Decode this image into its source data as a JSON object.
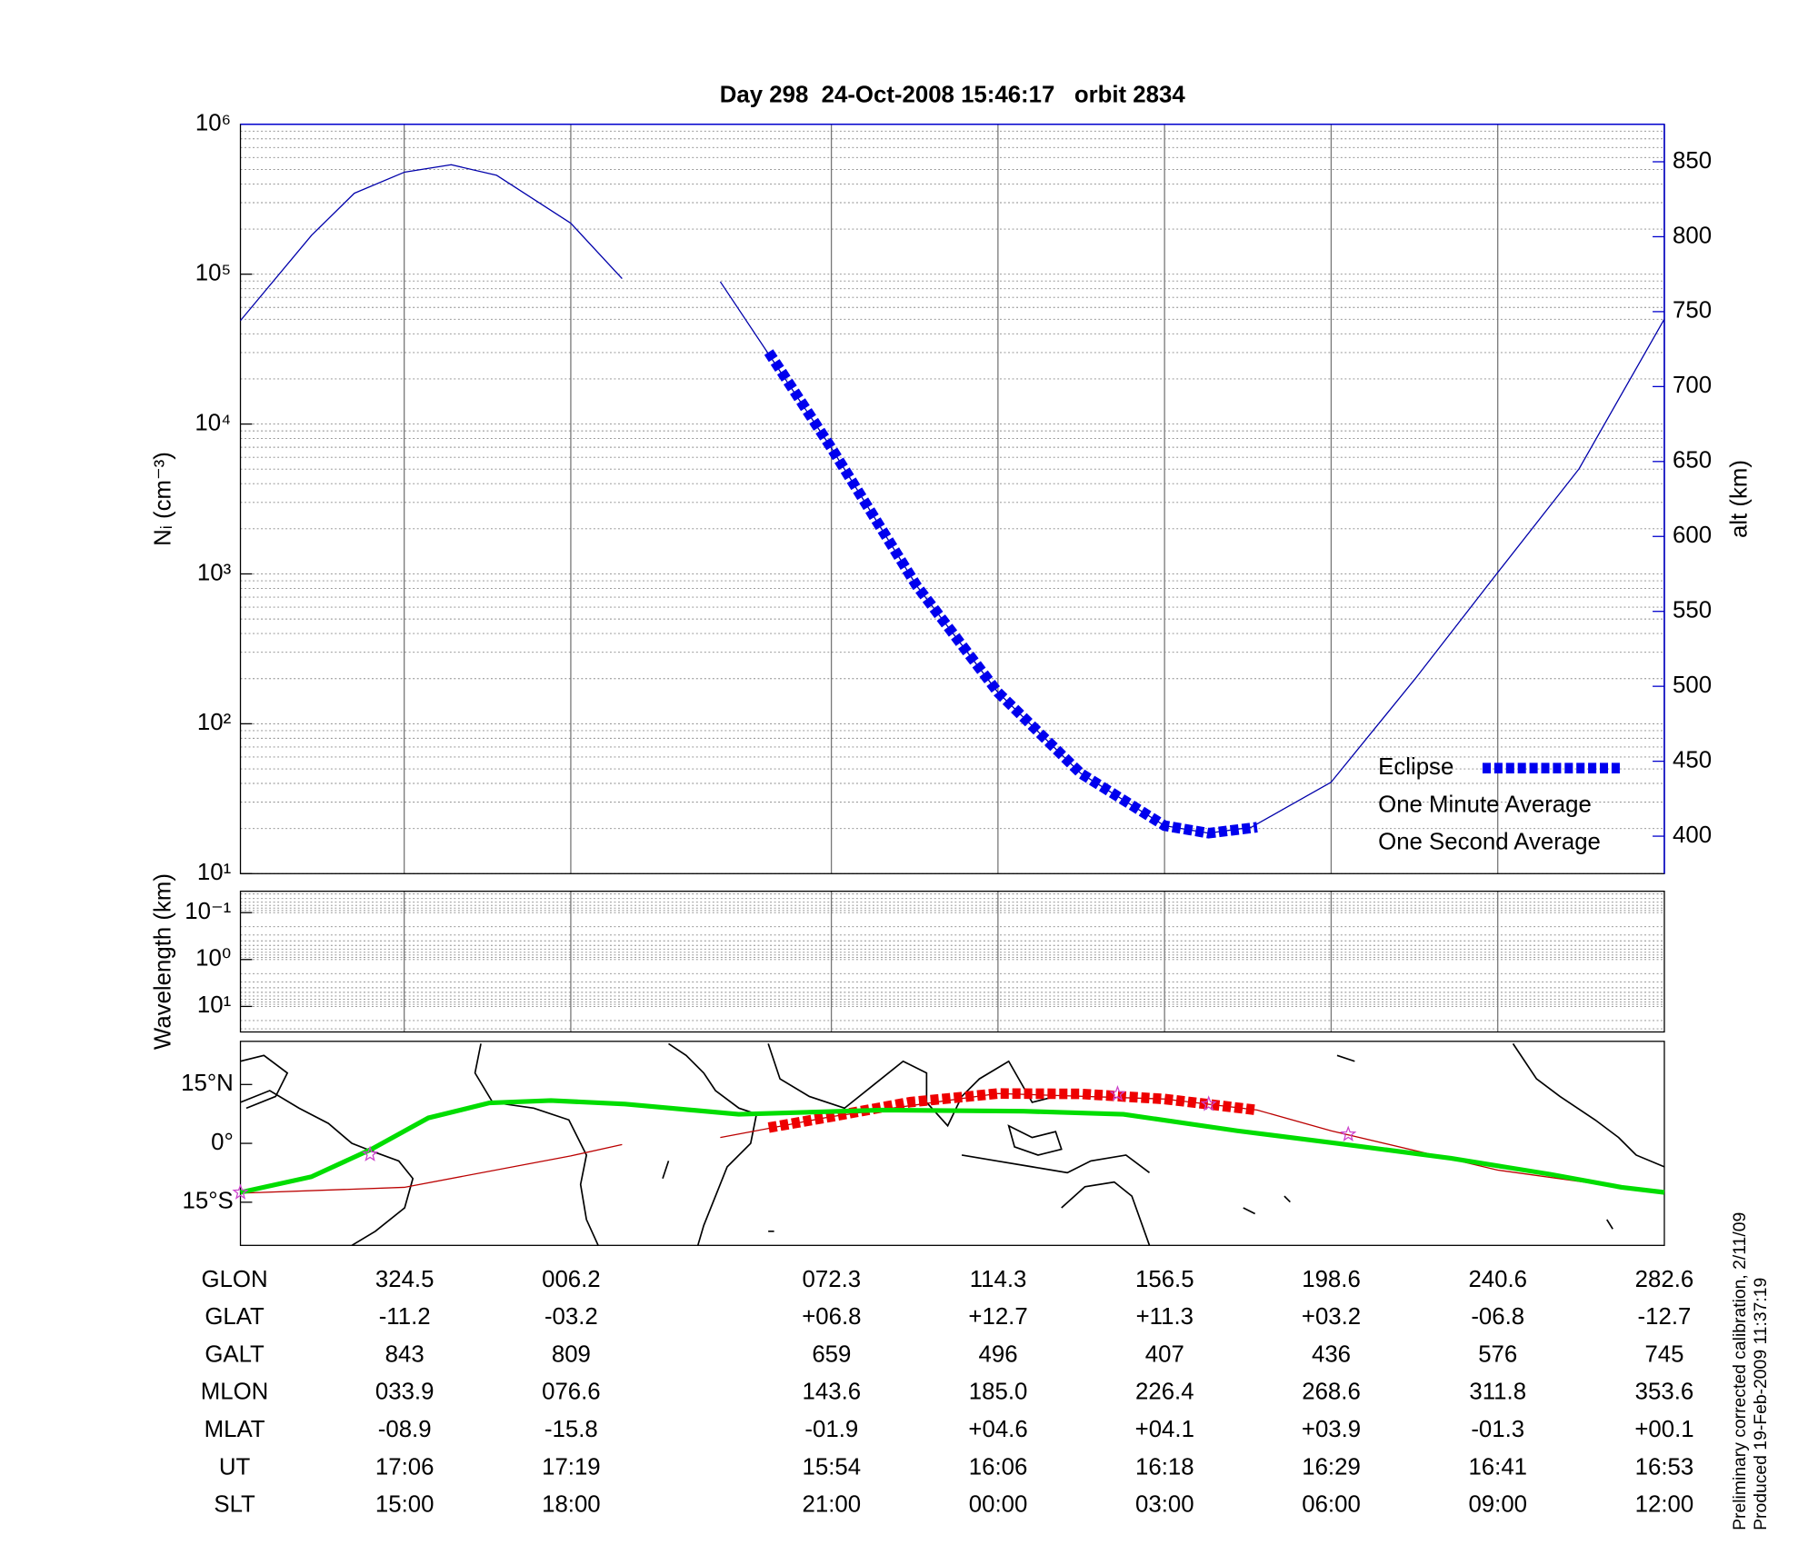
{
  "chart_data": [
    {
      "type": "line",
      "title": "Day 298  24-Oct-2008 15:46:17   orbit 2834",
      "ylabel": "Nᵢ (cm⁻³)",
      "y2label": "alt (km)",
      "ylog": true,
      "ylim": [
        10,
        1000000
      ],
      "yticks": [
        {
          "value": 10,
          "label": "10¹"
        },
        {
          "value": 100,
          "label": "10²"
        },
        {
          "value": 1000,
          "label": "10³"
        },
        {
          "value": 10000,
          "label": "10⁴"
        },
        {
          "value": 100000,
          "label": "10⁵"
        },
        {
          "value": 1000000,
          "label": "10⁶"
        }
      ],
      "y2lim": [
        375,
        875
      ],
      "y2ticks": [
        400,
        450,
        500,
        550,
        600,
        650,
        700,
        750,
        800,
        850
      ],
      "xlim": [
        0,
        100
      ],
      "xticks": [
        11.5,
        23.2,
        41.5,
        53.2,
        64.9,
        76.6,
        88.3
      ],
      "grid": true,
      "legend": "lower right",
      "series": [
        {
          "color": "#0000aa",
          "axis": "y2",
          "linewidth": 1,
          "x": [
            0,
            5,
            8,
            11.5,
            14.8,
            18,
            23.2,
            26.8,
            30,
            33.7,
            37,
            41.5,
            47.5,
            53.2,
            59,
            64.9,
            68,
            71,
            76.6,
            82.5,
            88.3,
            94,
            100
          ],
          "values": [
            744,
            801,
            829,
            843,
            848,
            841,
            809,
            772,
            null,
            770,
            723,
            659,
            567,
            496,
            442,
            407,
            402,
            406,
            436,
            505,
            576,
            645,
            745
          ]
        },
        {
          "name": "Eclipse",
          "color": "#0000ee",
          "axis": "y2",
          "linestyle": "squares",
          "x": [
            37.1,
            41.5,
            47.5,
            53.2,
            59,
            64.9,
            68,
            71.4
          ],
          "values": [
            723,
            659,
            567,
            496,
            442,
            407,
            402,
            406
          ]
        },
        {
          "name": "One Minute Average",
          "color": "#000000",
          "x": [],
          "values": []
        },
        {
          "name": "One Second Average",
          "color": "#00dd00",
          "x": [],
          "values": []
        }
      ]
    },
    {
      "type": "line",
      "ylabel": "Wavelength (km)",
      "ylog": true,
      "inverted": true,
      "ylim": [
        0.035,
        35
      ],
      "yticks": [
        {
          "value": 0.1,
          "label": "10⁻¹"
        },
        {
          "value": 1,
          "label": "10⁰"
        },
        {
          "value": 10,
          "label": "10¹"
        }
      ],
      "xlim": [
        0,
        100
      ],
      "xticks": [
        11.5,
        23.2,
        41.5,
        53.2,
        64.9,
        76.6,
        88.3
      ],
      "grid": true,
      "series": []
    },
    {
      "type": "map",
      "ylim": [
        -26,
        26
      ],
      "yticks": [
        {
          "value": 15,
          "label": "15°N"
        },
        {
          "value": 0,
          "label": "0°"
        },
        {
          "value": -15,
          "label": "15°S"
        }
      ],
      "xlim": [
        0,
        100
      ],
      "series": [
        {
          "color": "#bb0000",
          "linewidth": 1,
          "x": [
            0,
            11.5,
            23.2,
            26.8,
            30,
            33.7,
            41.5,
            53.2,
            64.9,
            71.4,
            76.6,
            88.3,
            100
          ],
          "values": [
            -12.7,
            -11.2,
            -3.2,
            -0.3,
            null,
            1.5,
            6.8,
            12.7,
            11.3,
            8.5,
            3.2,
            -6.8,
            -12.7
          ]
        },
        {
          "color": "#ee0000",
          "linestyle": "squares",
          "x": [
            37.1,
            41.5,
            47,
            53.2,
            59,
            64.9,
            71.4
          ],
          "values": [
            4,
            6.8,
            10.5,
            12.7,
            12.6,
            11.3,
            8.5
          ]
        },
        {
          "color": "#00dd00",
          "linewidth": 4,
          "x": [
            0,
            5,
            9.2,
            13.2,
            17.5,
            21.8,
            27,
            35,
            45,
            55,
            62,
            70,
            77,
            85,
            92,
            97,
            100
          ],
          "values": [
            -12.5,
            -8.5,
            -1.5,
            6.5,
            10.3,
            10.9,
            10,
            7.4,
            8.5,
            8.2,
            7.4,
            3.2,
            0,
            -3.8,
            -7.9,
            -11.2,
            -12.5
          ]
        }
      ],
      "markers": {
        "color": "#cc44cc",
        "x": [
          0,
          9.1,
          61.6,
          68,
          77.8
        ],
        "values": [
          -12.5,
          -2.8,
          12.6,
          10,
          2.3
        ]
      }
    }
  ],
  "table": {
    "rows": [
      {
        "label": "GLON",
        "values": [
          "324.5",
          "006.2",
          "072.3",
          "114.3",
          "156.5",
          "198.6",
          "240.6",
          "282.6"
        ]
      },
      {
        "label": "GLAT",
        "values": [
          "-11.2",
          "-03.2",
          "+06.8",
          "+12.7",
          "+11.3",
          "+03.2",
          "-06.8",
          "-12.7"
        ]
      },
      {
        "label": "GALT",
        "values": [
          "843",
          "809",
          "659",
          "496",
          "407",
          "436",
          "576",
          "745"
        ]
      },
      {
        "label": "MLON",
        "values": [
          "033.9",
          "076.6",
          "143.6",
          "185.0",
          "226.4",
          "268.6",
          "311.8",
          "353.6"
        ]
      },
      {
        "label": "MLAT",
        "values": [
          "-08.9",
          "-15.8",
          "-01.9",
          "+04.6",
          "+04.1",
          "+03.9",
          "-01.3",
          "+00.1"
        ]
      },
      {
        "label": "UT",
        "values": [
          "17:06",
          "17:19",
          "15:54",
          "16:06",
          "16:18",
          "16:29",
          "16:41",
          "16:53"
        ]
      },
      {
        "label": "SLT",
        "values": [
          "15:00",
          "18:00",
          "21:00",
          "00:00",
          "03:00",
          "06:00",
          "09:00",
          "12:00"
        ]
      }
    ]
  },
  "notes": [
    "Preliminary corrected calibration, 2/11/09",
    "Produced 19-Feb-2009 11:37:19"
  ]
}
